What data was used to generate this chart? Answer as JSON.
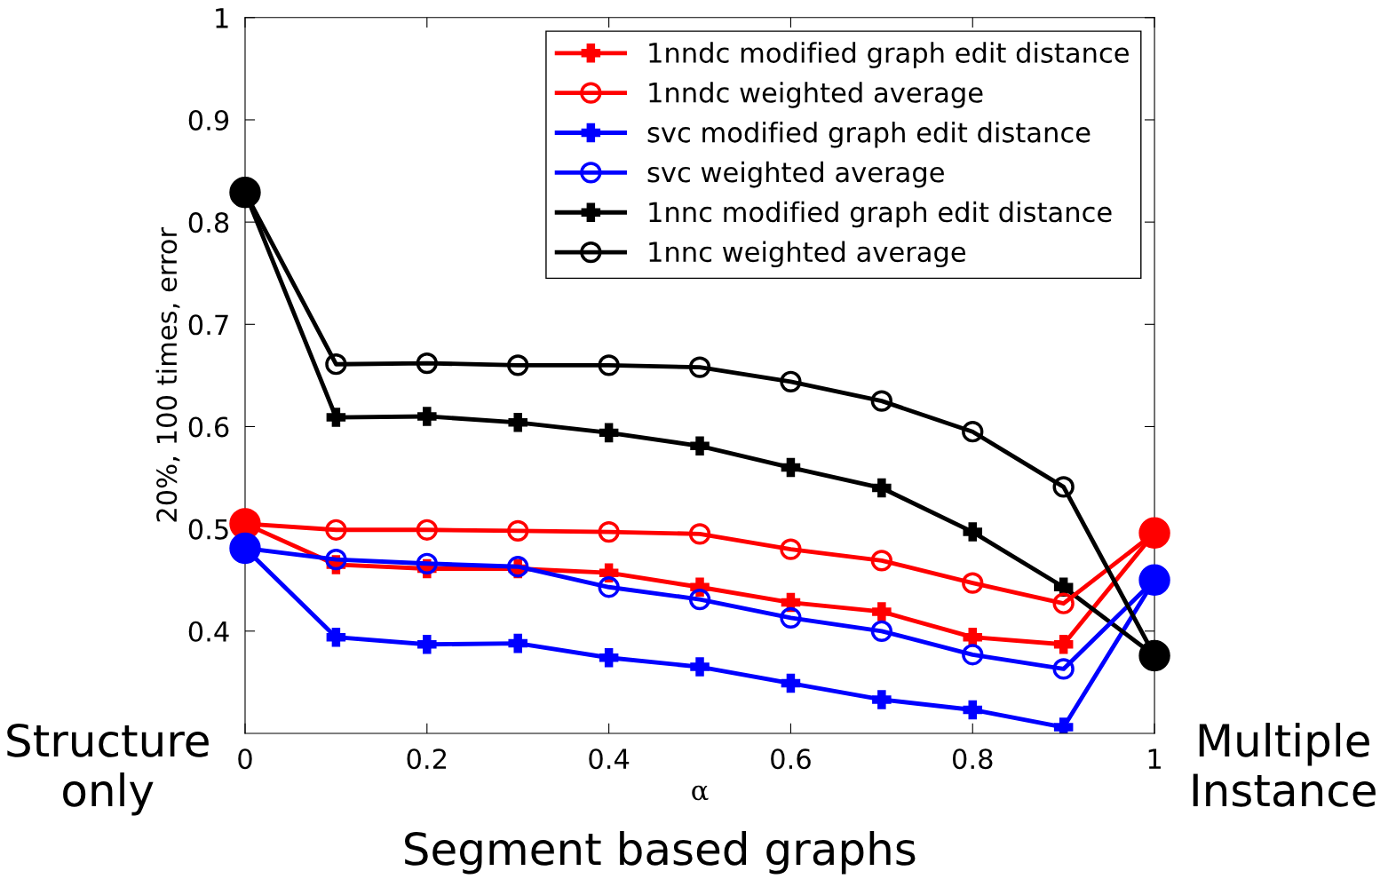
{
  "chart_data": {
    "type": "line",
    "xlabel": "α",
    "ylabel": "20%, 100 times, error",
    "x": [
      0,
      0.1,
      0.2,
      0.3,
      0.4,
      0.5,
      0.6,
      0.7,
      0.8,
      0.9,
      1
    ],
    "xlim": [
      0,
      1
    ],
    "xticks": [
      0,
      0.2,
      0.4,
      0.6,
      0.8,
      1
    ],
    "ylim": [
      0.3,
      1
    ],
    "yticks": [
      0.4,
      0.5,
      0.6,
      0.7,
      0.8,
      0.9,
      1
    ],
    "grid": false,
    "legend": "top right",
    "series": [
      {
        "name": "1nndc modified graph edit distance",
        "color": "#ff0000",
        "marker": "cross",
        "values": [
          0.505,
          0.465,
          0.461,
          0.461,
          0.457,
          0.443,
          0.428,
          0.419,
          0.394,
          0.387,
          0.496
        ]
      },
      {
        "name": "1nndc weighted average",
        "color": "#ff0000",
        "marker": "circle",
        "values": [
          0.505,
          0.499,
          0.499,
          0.498,
          0.497,
          0.495,
          0.48,
          0.469,
          0.447,
          0.427,
          0.496
        ]
      },
      {
        "name": "svc modified graph edit distance",
        "color": "#0000ff",
        "marker": "cross",
        "values": [
          0.481,
          0.394,
          0.387,
          0.388,
          0.374,
          0.365,
          0.349,
          0.333,
          0.323,
          0.306,
          0.45
        ]
      },
      {
        "name": "svc weighted average",
        "color": "#0000ff",
        "marker": "circle",
        "values": [
          0.481,
          0.47,
          0.466,
          0.463,
          0.443,
          0.431,
          0.413,
          0.4,
          0.377,
          0.363,
          0.45
        ]
      },
      {
        "name": "1nnc modified graph edit distance",
        "color": "#000000",
        "marker": "cross",
        "values": [
          0.829,
          0.609,
          0.61,
          0.604,
          0.594,
          0.581,
          0.56,
          0.54,
          0.497,
          0.443,
          0.376
        ]
      },
      {
        "name": "1nnc weighted average",
        "color": "#000000",
        "marker": "circle",
        "values": [
          0.829,
          0.661,
          0.662,
          0.66,
          0.66,
          0.658,
          0.644,
          0.625,
          0.595,
          0.541,
          0.376
        ]
      },
      {
        "type": "scatter",
        "color": "#ff0000",
        "values": [
          0.505,
          null,
          null,
          null,
          null,
          null,
          null,
          null,
          null,
          null,
          0.496
        ]
      },
      {
        "type": "scatter",
        "color": "#0000ff",
        "values": [
          0.481,
          null,
          null,
          null,
          null,
          null,
          null,
          null,
          null,
          null,
          0.45
        ]
      },
      {
        "type": "scatter",
        "color": "#000000",
        "values": [
          0.829,
          null,
          null,
          null,
          null,
          null,
          null,
          null,
          null,
          null,
          0.376
        ]
      }
    ],
    "annotations": [
      "Structure\nonly",
      "Multiple\nInstance",
      "Segment based graphs"
    ]
  }
}
